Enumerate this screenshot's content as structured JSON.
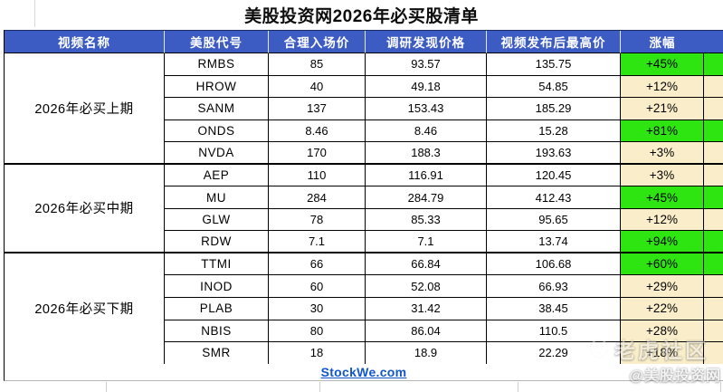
{
  "title": "美股投资网2026年必买股清单",
  "table": {
    "headers": [
      "视频名称",
      "美股代号",
      "合理入场价",
      "调研发现价格",
      "视频发布后最高价",
      "涨幅"
    ],
    "groups": [
      {
        "name": "2026年必买上期",
        "rows": [
          {
            "ticker": "RMBS",
            "entry": "85",
            "found": "93.57",
            "high": "135.75",
            "gain": "+45%",
            "highlight": true
          },
          {
            "ticker": "HROW",
            "entry": "40",
            "found": "49.18",
            "high": "54.85",
            "gain": "+12%",
            "highlight": false
          },
          {
            "ticker": "SANM",
            "entry": "137",
            "found": "153.43",
            "high": "185.29",
            "gain": "+21%",
            "highlight": false
          },
          {
            "ticker": "ONDS",
            "entry": "8.46",
            "found": "8.46",
            "high": "15.28",
            "gain": "+81%",
            "highlight": true
          },
          {
            "ticker": "NVDA",
            "entry": "170",
            "found": "188.3",
            "high": "193.63",
            "gain": "+3%",
            "highlight": false
          }
        ]
      },
      {
        "name": "2026年必买中期",
        "rows": [
          {
            "ticker": "AEP",
            "entry": "110",
            "found": "116.91",
            "high": "120.45",
            "gain": "+3%",
            "highlight": false
          },
          {
            "ticker": "MU",
            "entry": "284",
            "found": "284.79",
            "high": "412.43",
            "gain": "+45%",
            "highlight": true
          },
          {
            "ticker": "GLW",
            "entry": "78",
            "found": "85.33",
            "high": "95.65",
            "gain": "+12%",
            "highlight": false
          },
          {
            "ticker": "RDW",
            "entry": "7.1",
            "found": "7.1",
            "high": "13.74",
            "gain": "+94%",
            "highlight": true
          }
        ]
      },
      {
        "name": "2026年必买下期",
        "rows": [
          {
            "ticker": "TTMI",
            "entry": "66",
            "found": "66.84",
            "high": "106.68",
            "gain": "+60%",
            "highlight": true
          },
          {
            "ticker": "INOD",
            "entry": "60",
            "found": "52.08",
            "high": "66.93",
            "gain": "+29%",
            "highlight": false
          },
          {
            "ticker": "PLAB",
            "entry": "30",
            "found": "31.42",
            "high": "38.45",
            "gain": "+22%",
            "highlight": false
          },
          {
            "ticker": "NBIS",
            "entry": "80",
            "found": "86.04",
            "high": "110.5",
            "gain": "+28%",
            "highlight": false
          },
          {
            "ticker": "SMR",
            "entry": "18",
            "found": "18.9",
            "high": "22.29",
            "gain": "+18%",
            "highlight": false
          }
        ]
      }
    ]
  },
  "footer": {
    "link": "StockWe.com"
  },
  "watermark": {
    "community": "老虎社区",
    "handle": "@美股投资网"
  },
  "colors": {
    "header_blue": "#3c5cc4",
    "gain_green": "#2ee511",
    "gain_cream": "#faeeca",
    "link_blue": "#1155cc",
    "title_black": "#0d0d0d"
  }
}
